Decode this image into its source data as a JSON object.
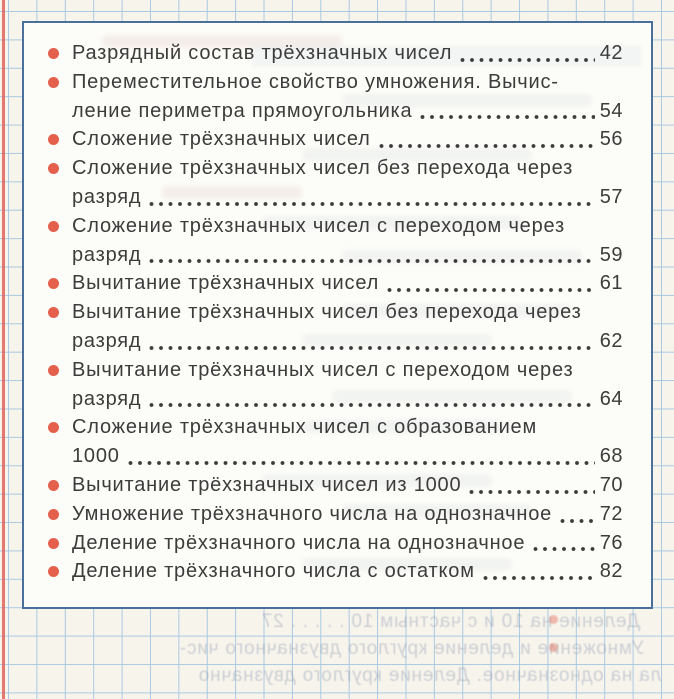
{
  "theme": {
    "paper_bg": "#f7f4ec",
    "grid_line": "#aac9e2",
    "frame_border": "#4a6f9b",
    "box_bg": "#fcfcf8",
    "bullet": "#e4604d",
    "ink": "#3c3c3c",
    "margin_line": "#e0635a",
    "ghost": "#8593ad",
    "ghost_pink": "#c08a8a"
  },
  "toc": {
    "items": [
      {
        "lines": [
          "Разрядный состав трёхзначных чисел"
        ],
        "page": "42"
      },
      {
        "lines": [
          "Переместительное свойство умножения. Вычис-",
          "ление периметра прямоугольника"
        ],
        "page": "54"
      },
      {
        "lines": [
          "Сложение трёхзначных чисел"
        ],
        "page": "56"
      },
      {
        "lines": [
          "Сложение трёхзначных чисел без перехода через",
          "разряд"
        ],
        "page": "57"
      },
      {
        "lines": [
          "Сложение трёхзначных чисел с переходом через",
          "разряд"
        ],
        "page": "59"
      },
      {
        "lines": [
          "Вычитание трёхзначных чисел"
        ],
        "page": "61"
      },
      {
        "lines": [
          "Вычитание трёхзначных чисел без перехода через",
          "разряд"
        ],
        "page": "62"
      },
      {
        "lines": [
          "Вычитание трёхзначных чисел с переходом через",
          "разряд"
        ],
        "page": "64"
      },
      {
        "lines": [
          "Сложение трёхзначных чисел с образованием",
          "1000"
        ],
        "page": "68"
      },
      {
        "lines": [
          "Вычитание трёхзначных чисел из 1000"
        ],
        "page": "70"
      },
      {
        "lines": [
          "Умножение трёхзначного числа на однозначное"
        ],
        "page": "72"
      },
      {
        "lines": [
          "Деление трёхзначного числа на однозначное"
        ],
        "page": "76"
      },
      {
        "lines": [
          "Деление трёхзначного числа с остатком"
        ],
        "page": "82"
      }
    ]
  },
  "ghost_lines": {
    "0": "Деление на 10 и с частным 10 . . . . . 27",
    "1": "Умножение и деление круглого двузначного чис-",
    "2": "ла на однозначное. Деление круглого двузначно"
  }
}
